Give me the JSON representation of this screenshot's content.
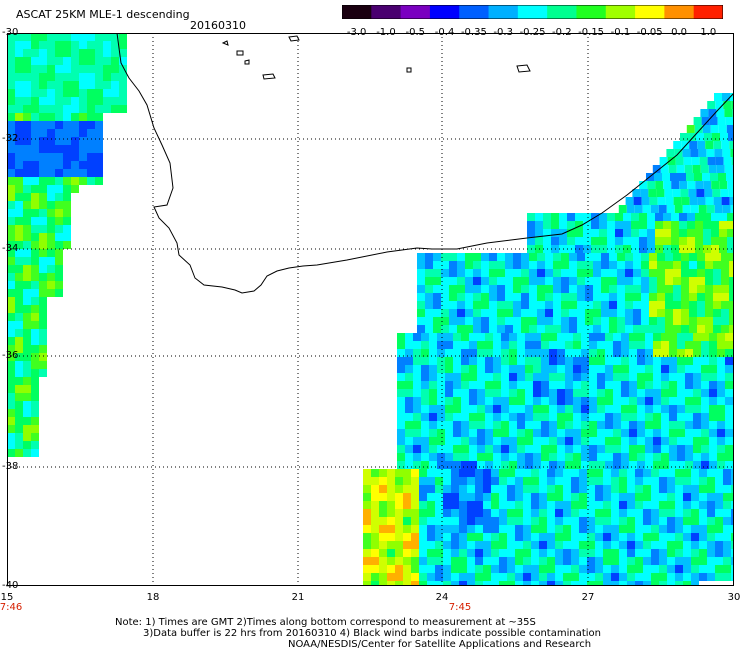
{
  "header": {
    "title": "ASCAT 25KM MLE-1 descending",
    "date": "20160310"
  },
  "colorbar": {
    "ticks": [
      "-3.0",
      "-1.0",
      "-0.5",
      "-0.4",
      "-0.35",
      "-0.3",
      "-0.25",
      "-0.2",
      "-0.15",
      "-0.1",
      "-0.05",
      "0.0",
      "1.0"
    ],
    "colors": [
      "#1a0010",
      "#4a0070",
      "#7a00c0",
      "#0000ff",
      "#0060ff",
      "#00b0ff",
      "#00ffff",
      "#00ff90",
      "#20ff20",
      "#a0ff00",
      "#ffff00",
      "#ff9000",
      "#ff2000"
    ]
  },
  "axes": {
    "lat_labels": [
      "-30",
      "-32",
      "-34",
      "-36",
      "-38",
      "-40"
    ],
    "lon_labels": [
      "15",
      "18",
      "21",
      "24",
      "27",
      "30"
    ],
    "time_labels": [
      "7:46",
      "7:45"
    ]
  },
  "notes": {
    "line1": "Note: 1) Times are GMT 2)Times along bottom correspond to measurement at ~35S",
    "line2": "3)Data buffer is 22 hrs from 20160310 4) Black wind barbs indicate possible contamination",
    "line3": "NOAA/NESDIS/Center for Satellite Applications and Research"
  }
}
